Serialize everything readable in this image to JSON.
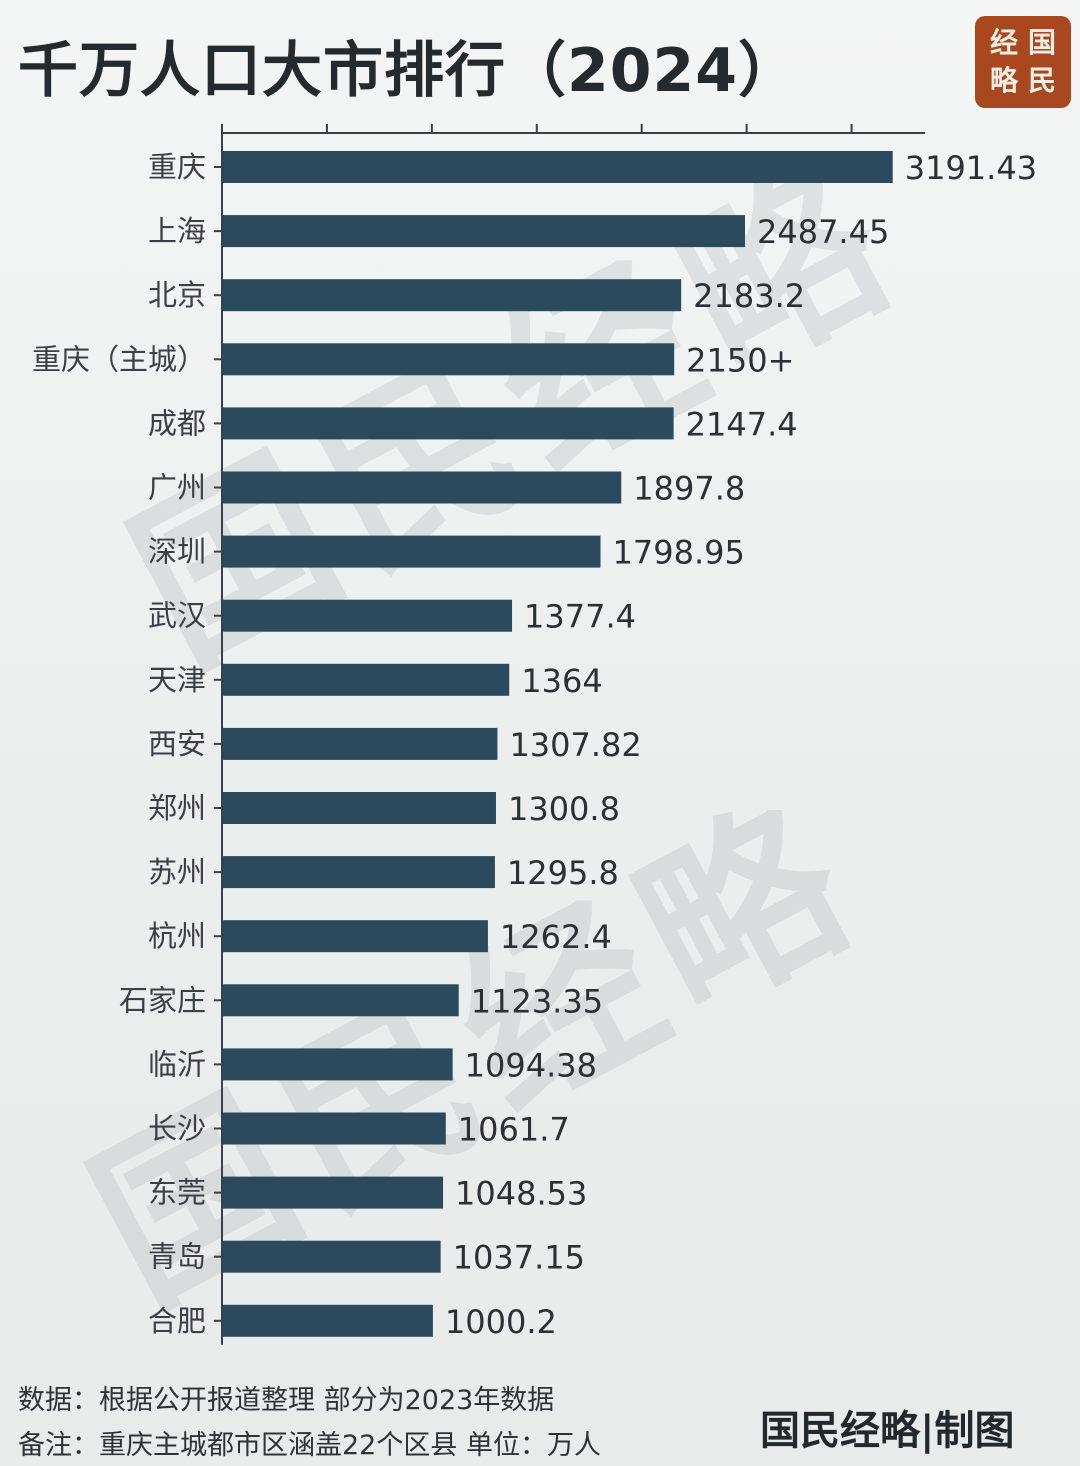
{
  "title": "千万人口大市排行（2024）",
  "seal": {
    "chars": [
      "经",
      "国",
      "略",
      "民"
    ],
    "color": "#a9481f"
  },
  "watermark_text": "国民经略",
  "footer": {
    "source": "数据：根据公开报道整理 部分为2023年数据",
    "note": "备注：重庆主城都市区涵盖22个区县   单位：万人",
    "brand": "国民经略|制图"
  },
  "bar_color": "#2c4a5e",
  "chart_data": {
    "type": "bar",
    "orientation": "horizontal",
    "title": "千万人口大市排行（2024）",
    "unit": "万人",
    "xlim": [
      0,
      3350
    ],
    "categories": [
      "重庆",
      "上海",
      "北京",
      "重庆（主城）",
      "成都",
      "广州",
      "深圳",
      "武汉",
      "天津",
      "西安",
      "郑州",
      "苏州",
      "杭州",
      "石家庄",
      "临沂",
      "长沙",
      "东莞",
      "青岛",
      "合肥"
    ],
    "values": [
      3191.43,
      2487.45,
      2183.2,
      2150,
      2147.4,
      1897.8,
      1798.95,
      1377.4,
      1364,
      1307.82,
      1300.8,
      1295.8,
      1262.4,
      1123.35,
      1094.38,
      1061.7,
      1048.53,
      1037.15,
      1000.2
    ],
    "value_labels": [
      "3191.43",
      "2487.45",
      "2183.2",
      "2150+",
      "2147.4",
      "1897.8",
      "1798.95",
      "1377.4",
      "1364",
      "1307.82",
      "1300.8",
      "1295.8",
      "1262.4",
      "1123.35",
      "1094.38",
      "1061.7",
      "1048.53",
      "1037.15",
      "1000.2"
    ]
  }
}
